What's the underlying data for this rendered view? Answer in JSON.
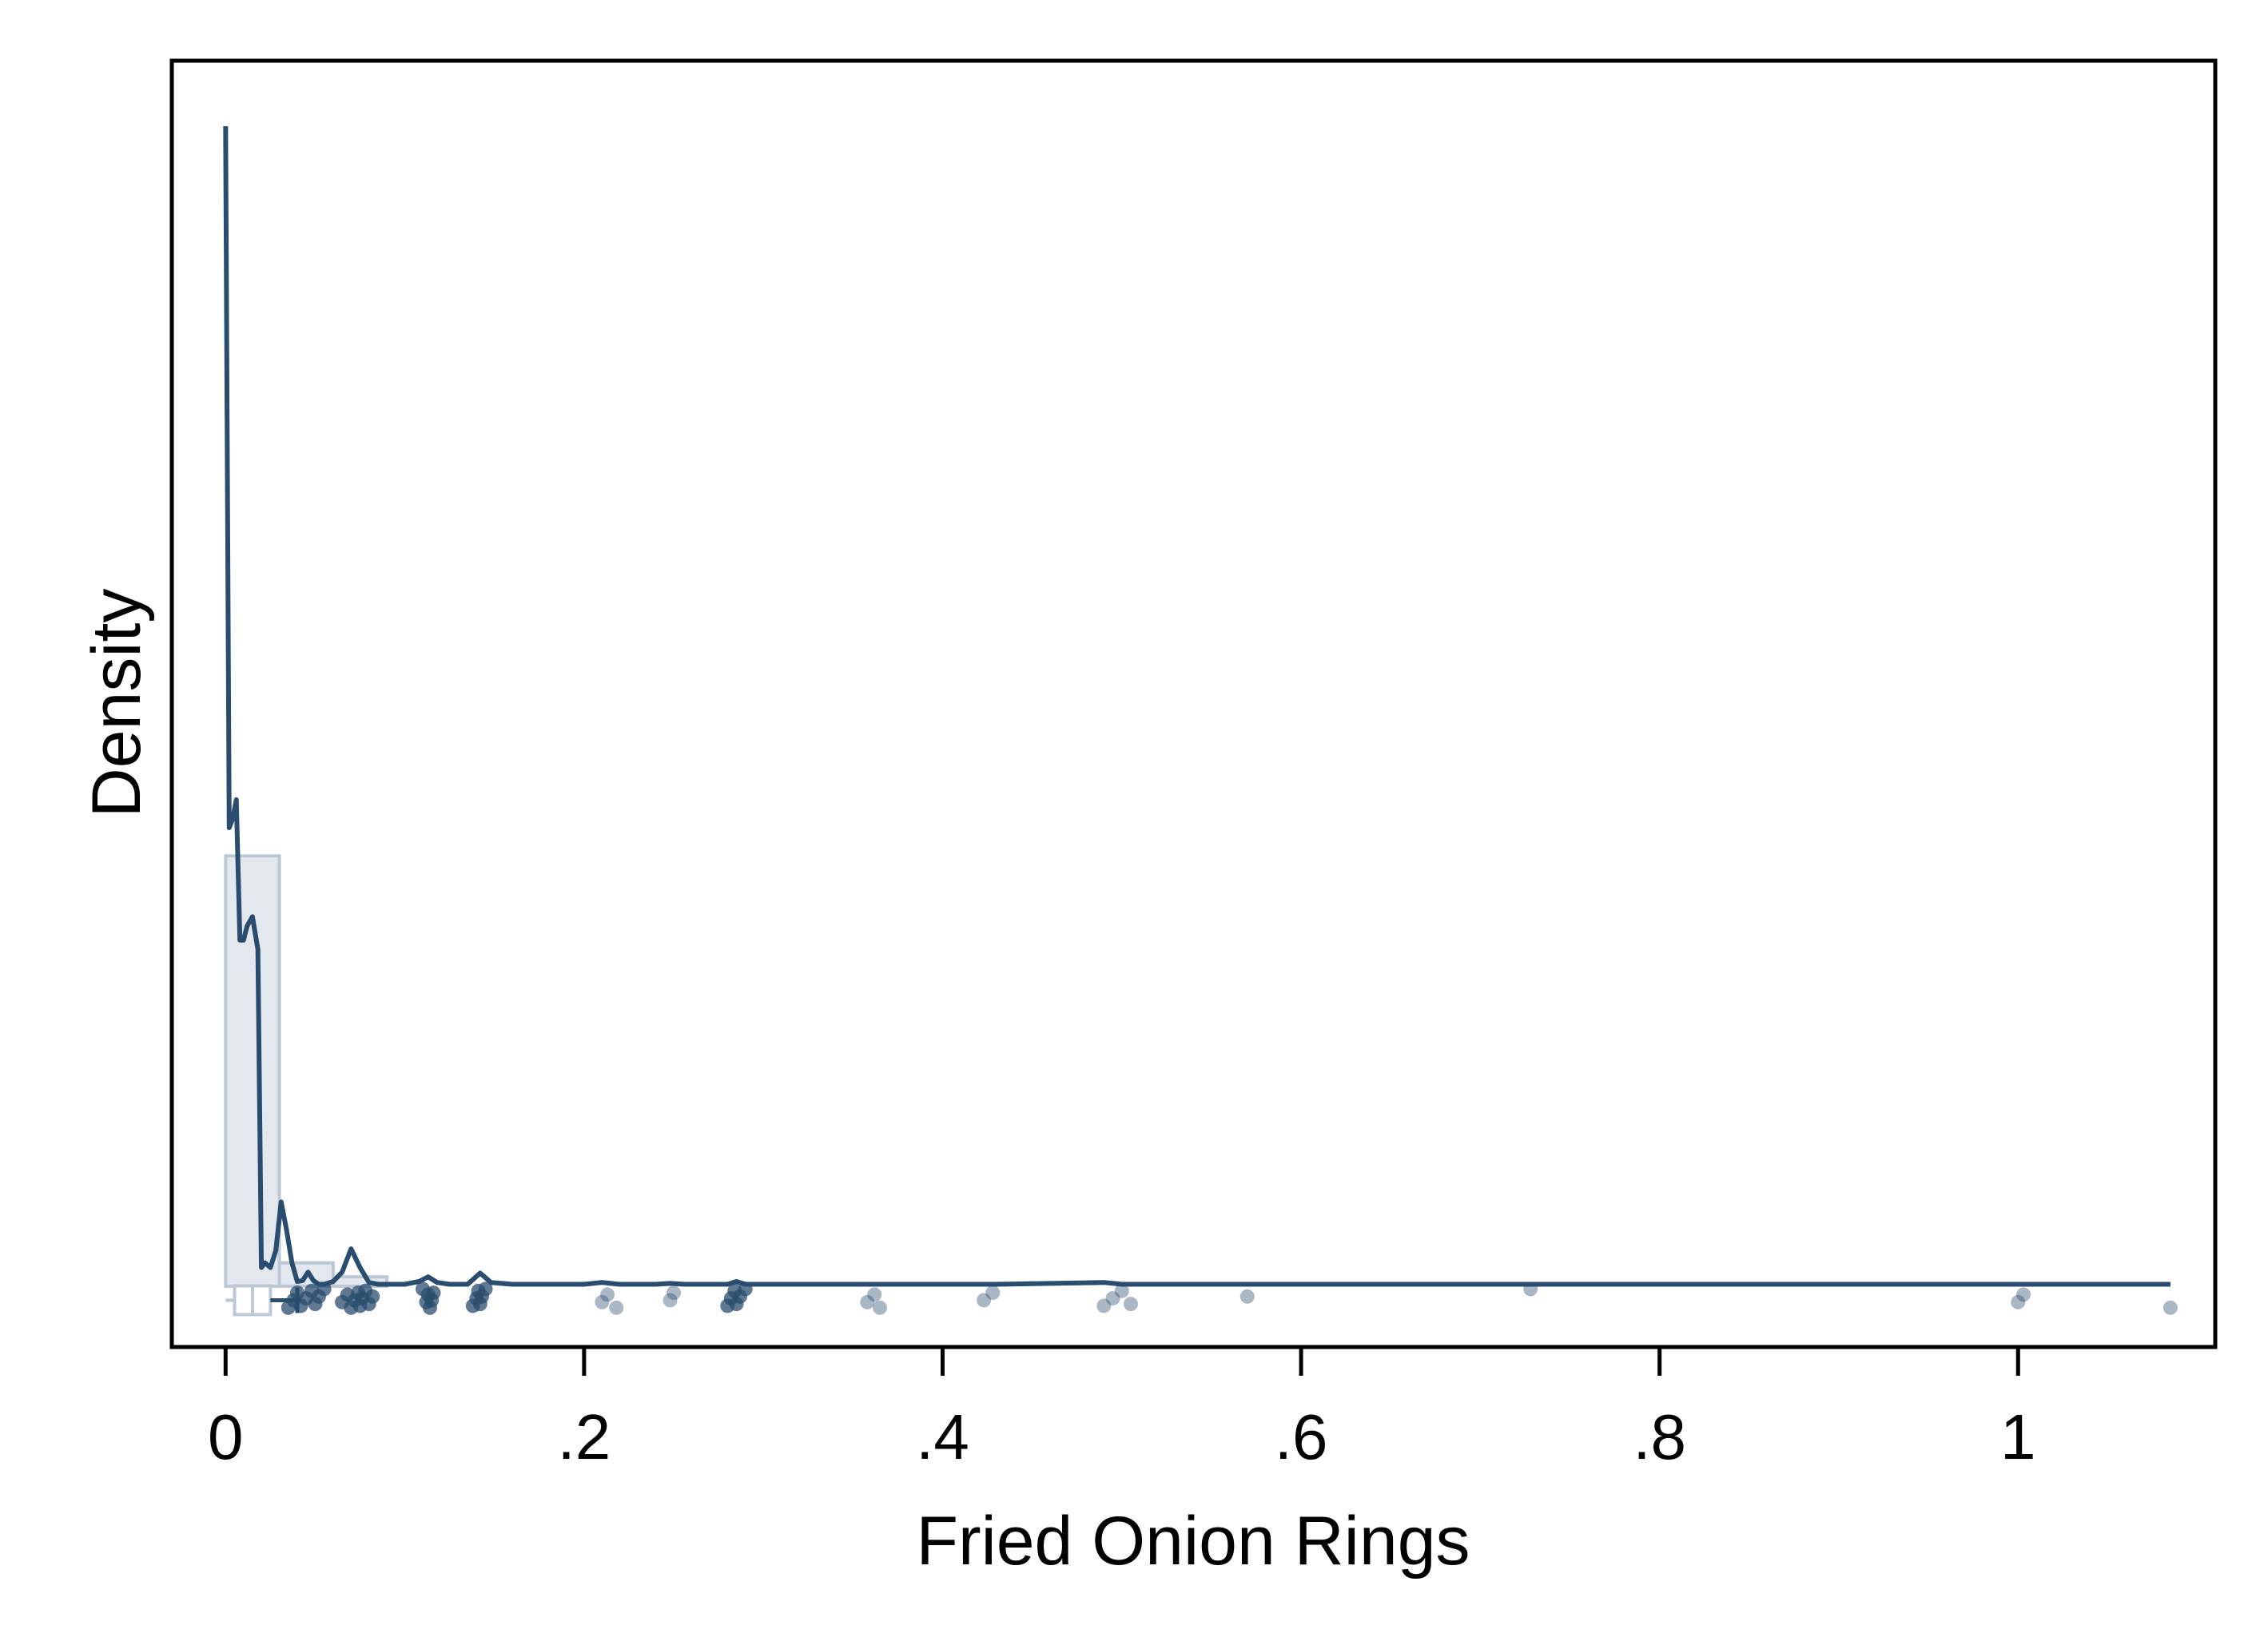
{
  "chart_data": {
    "type": "histogram+density+rug",
    "xlabel": "Fried Onion Rings",
    "ylabel": "Density",
    "xlim": [
      -0.03,
      1.11
    ],
    "ylim": [
      -0.65,
      13.1
    ],
    "x_ticks": [
      0,
      0.2,
      0.4,
      0.6,
      0.8,
      1
    ],
    "x_tick_labels": [
      "0",
      ".2",
      ".4",
      ".6",
      ".8",
      "1"
    ],
    "y_ticks_labeled": false,
    "grid": false,
    "colors": {
      "line": "#2a4c6e",
      "bar_fill": "#dfe5ec",
      "bar_stroke": "#bcc8d5",
      "dots": "#2a4c6e",
      "axes": "#000000"
    },
    "histogram": {
      "bin_width": 0.03,
      "bins": [
        {
          "x0": 0.0,
          "x1": 0.03,
          "density": 4.6
        },
        {
          "x0": 0.03,
          "x1": 0.06,
          "density": 0.25
        },
        {
          "x0": 0.06,
          "x1": 0.09,
          "density": 0.1
        }
      ]
    },
    "density_curve": {
      "x": [
        0.0,
        0.002,
        0.004,
        0.006,
        0.008,
        0.01,
        0.012,
        0.015,
        0.018,
        0.02,
        0.022,
        0.025,
        0.028,
        0.031,
        0.034,
        0.037,
        0.04,
        0.043,
        0.046,
        0.049,
        0.052,
        0.055,
        0.06,
        0.065,
        0.07,
        0.075,
        0.08,
        0.085,
        0.09,
        0.1,
        0.108,
        0.113,
        0.118,
        0.125,
        0.135,
        0.142,
        0.148,
        0.16,
        0.2,
        0.21,
        0.22,
        0.24,
        0.248,
        0.256,
        0.27,
        0.28,
        0.285,
        0.29,
        0.3,
        0.36,
        0.43,
        0.49,
        0.5,
        0.6,
        0.8,
        1.0,
        1.085
      ],
      "y": [
        12.4,
        4.9,
        5.0,
        5.2,
        3.7,
        3.7,
        3.85,
        3.95,
        3.6,
        0.2,
        0.25,
        0.2,
        0.38,
        0.9,
        0.6,
        0.25,
        0.05,
        0.06,
        0.15,
        0.06,
        0.02,
        0.02,
        0.05,
        0.15,
        0.4,
        0.2,
        0.04,
        0.02,
        0.02,
        0.02,
        0.05,
        0.1,
        0.04,
        0.02,
        0.02,
        0.14,
        0.04,
        0.02,
        0.02,
        0.04,
        0.02,
        0.02,
        0.03,
        0.02,
        0.02,
        0.02,
        0.05,
        0.02,
        0.02,
        0.02,
        0.02,
        0.04,
        0.02,
        0.02,
        0.02,
        0.02,
        0.02
      ]
    },
    "jittered_points": [
      0.035,
      0.038,
      0.04,
      0.042,
      0.045,
      0.048,
      0.05,
      0.052,
      0.055,
      0.065,
      0.068,
      0.07,
      0.072,
      0.074,
      0.075,
      0.076,
      0.078,
      0.08,
      0.082,
      0.11,
      0.112,
      0.113,
      0.114,
      0.115,
      0.116,
      0.138,
      0.14,
      0.141,
      0.142,
      0.143,
      0.145,
      0.21,
      0.213,
      0.218,
      0.248,
      0.25,
      0.28,
      0.282,
      0.284,
      0.285,
      0.287,
      0.29,
      0.358,
      0.362,
      0.365,
      0.423,
      0.428,
      0.49,
      0.495,
      0.5,
      0.505,
      0.57,
      0.728,
      1.0,
      1.003,
      1.085
    ],
    "box_summary": {
      "whisker_low": 0.0,
      "q1": 0.005,
      "median": 0.015,
      "q3": 0.025,
      "whisker_high": 0.04
    }
  }
}
